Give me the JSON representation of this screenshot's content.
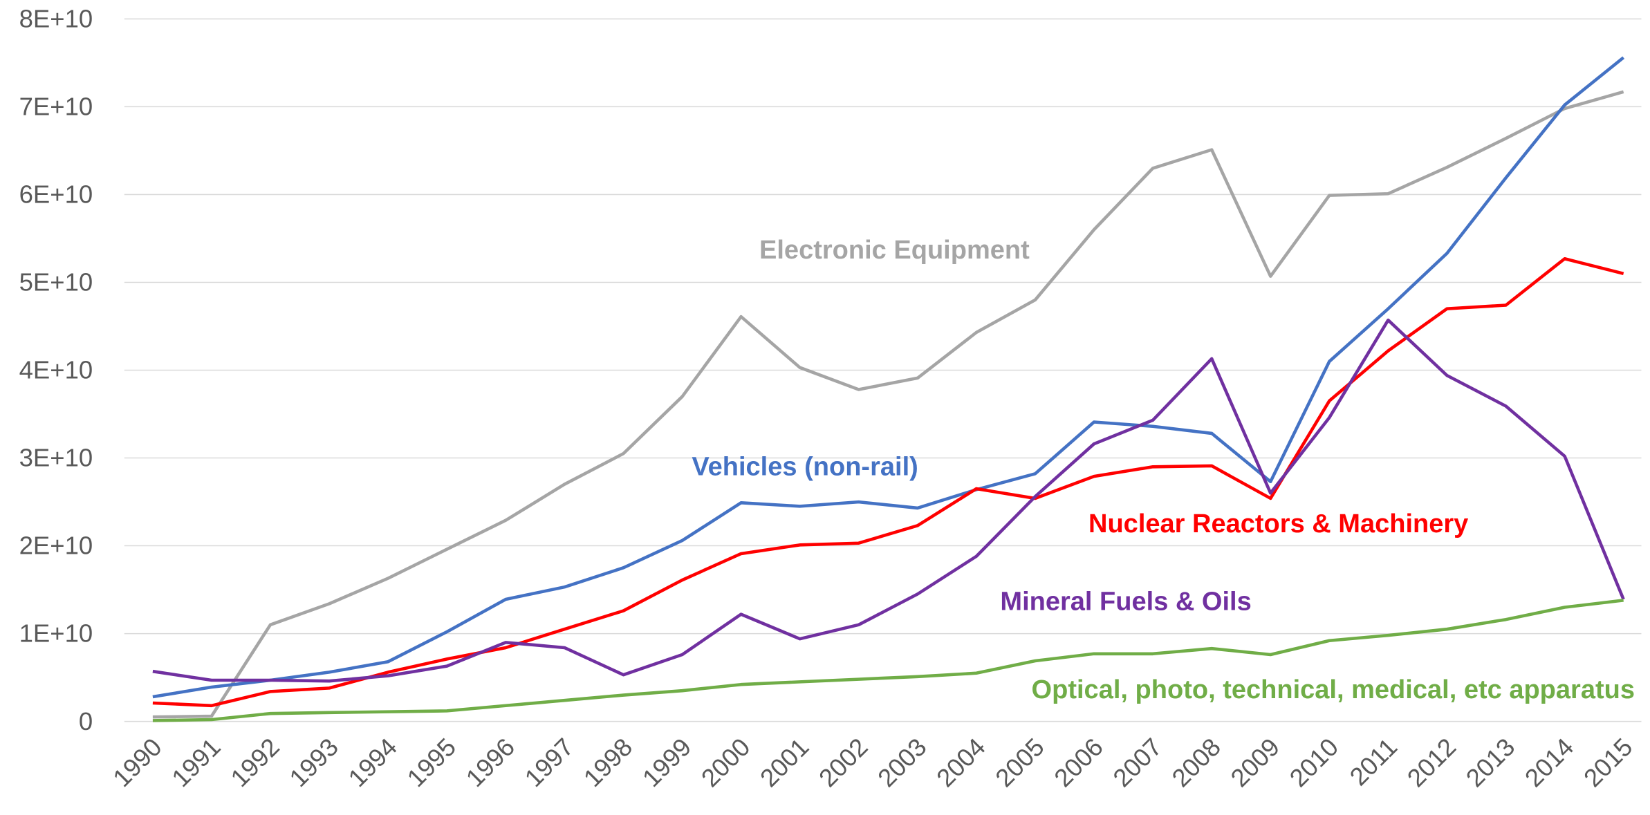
{
  "chart_data": {
    "type": "line",
    "categories": [
      "1990",
      "1991",
      "1992",
      "1993",
      "1994",
      "1995",
      "1996",
      "1997",
      "1998",
      "1999",
      "2000",
      "2001",
      "2002",
      "2003",
      "2004",
      "2005",
      "2006",
      "2007",
      "2008",
      "2009",
      "2010",
      "2011",
      "2012",
      "2013",
      "2014",
      "2015"
    ],
    "ylim": [
      0,
      80000000000.0
    ],
    "yticks": [
      0,
      {
        "value": 10000000000.0,
        "label": "1E+10"
      },
      {
        "value": 20000000000.0,
        "label": "2E+10"
      },
      {
        "value": 30000000000.0,
        "label": "3E+10"
      },
      {
        "value": 40000000000.0,
        "label": "4E+10"
      },
      {
        "value": 50000000000.0,
        "label": "5E+10"
      },
      {
        "value": 60000000000.0,
        "label": "6E+10"
      },
      {
        "value": 70000000000.0,
        "label": "7E+10"
      },
      {
        "value": 80000000000.0,
        "label": "8E+10"
      }
    ],
    "grid": true,
    "series": [
      {
        "name": "Electronic Equipment",
        "color": "#a5a5a5",
        "values": [
          500000000.0,
          600000000.0,
          11000000000.0,
          13400000000.0,
          16300000000.0,
          19600000000.0,
          22900000000.0,
          27000000000.0,
          30500000000.0,
          37000000000.0,
          46100000000.0,
          40300000000.0,
          37800000000.0,
          39100000000.0,
          44300000000.0,
          48000000000.0,
          56000000000.0,
          63000000000.0,
          65100000000.0,
          50700000000.0,
          59900000000.0,
          60100000000.0,
          63100000000.0,
          66400000000.0,
          69800000000.0,
          71700000000.0
        ]
      },
      {
        "name": "Vehicles (non-rail)",
        "color": "#4472c4",
        "values": [
          2800000000.0,
          3900000000.0,
          4700000000.0,
          5600000000.0,
          6800000000.0,
          10200000000.0,
          13900000000.0,
          15300000000.0,
          17500000000.0,
          20600000000.0,
          24900000000.0,
          24500000000.0,
          25000000000.0,
          24300000000.0,
          26400000000.0,
          28200000000.0,
          34100000000.0,
          33600000000.0,
          32800000000.0,
          27300000000.0,
          41000000000.0,
          47000000000.0,
          53300000000.0,
          61900000000.0,
          70200000000.0,
          75600000000.0
        ]
      },
      {
        "name": "Nuclear Reactors & Machinery",
        "color": "#ff0000",
        "values": [
          2100000000.0,
          1800000000.0,
          3400000000.0,
          3800000000.0,
          5600000000.0,
          7100000000.0,
          8400000000.0,
          10500000000.0,
          12600000000.0,
          16100000000.0,
          19100000000.0,
          20100000000.0,
          20300000000.0,
          22300000000.0,
          26500000000.0,
          25400000000.0,
          27900000000.0,
          29000000000.0,
          29100000000.0,
          25400000000.0,
          36500000000.0,
          42200000000.0,
          47000000000.0,
          47400000000.0,
          52700000000.0,
          51000000000.0
        ]
      },
      {
        "name": "Mineral Fuels & Oils",
        "color": "#7030a0",
        "values": [
          5700000000.0,
          4700000000.0,
          4700000000.0,
          4600000000.0,
          5200000000.0,
          6300000000.0,
          9000000000.0,
          8400000000.0,
          5300000000.0,
          7600000000.0,
          12200000000.0,
          9400000000.0,
          11000000000.0,
          14500000000.0,
          18800000000.0,
          25600000000.0,
          31600000000.0,
          34300000000.0,
          41300000000.0,
          26000000000.0,
          34600000000.0,
          45700000000.0,
          39400000000.0,
          35900000000.0,
          30200000000.0,
          13900000000.0
        ]
      },
      {
        "name": "Optical, photo, technical, medical, etc apparatus",
        "color": "#70ad47",
        "values": [
          100000000.0,
          200000000.0,
          900000000.0,
          1000000000.0,
          1100000000.0,
          1200000000.0,
          1800000000.0,
          2400000000.0,
          3000000000.0,
          3500000000.0,
          4200000000.0,
          4500000000.0,
          4800000000.0,
          5100000000.0,
          5500000000.0,
          6900000000.0,
          7700000000.0,
          7700000000.0,
          8300000000.0,
          7600000000.0,
          9200000000.0,
          9800000000.0,
          10500000000.0,
          11600000000.0,
          13000000000.0,
          13800000000.0
        ]
      }
    ]
  }
}
